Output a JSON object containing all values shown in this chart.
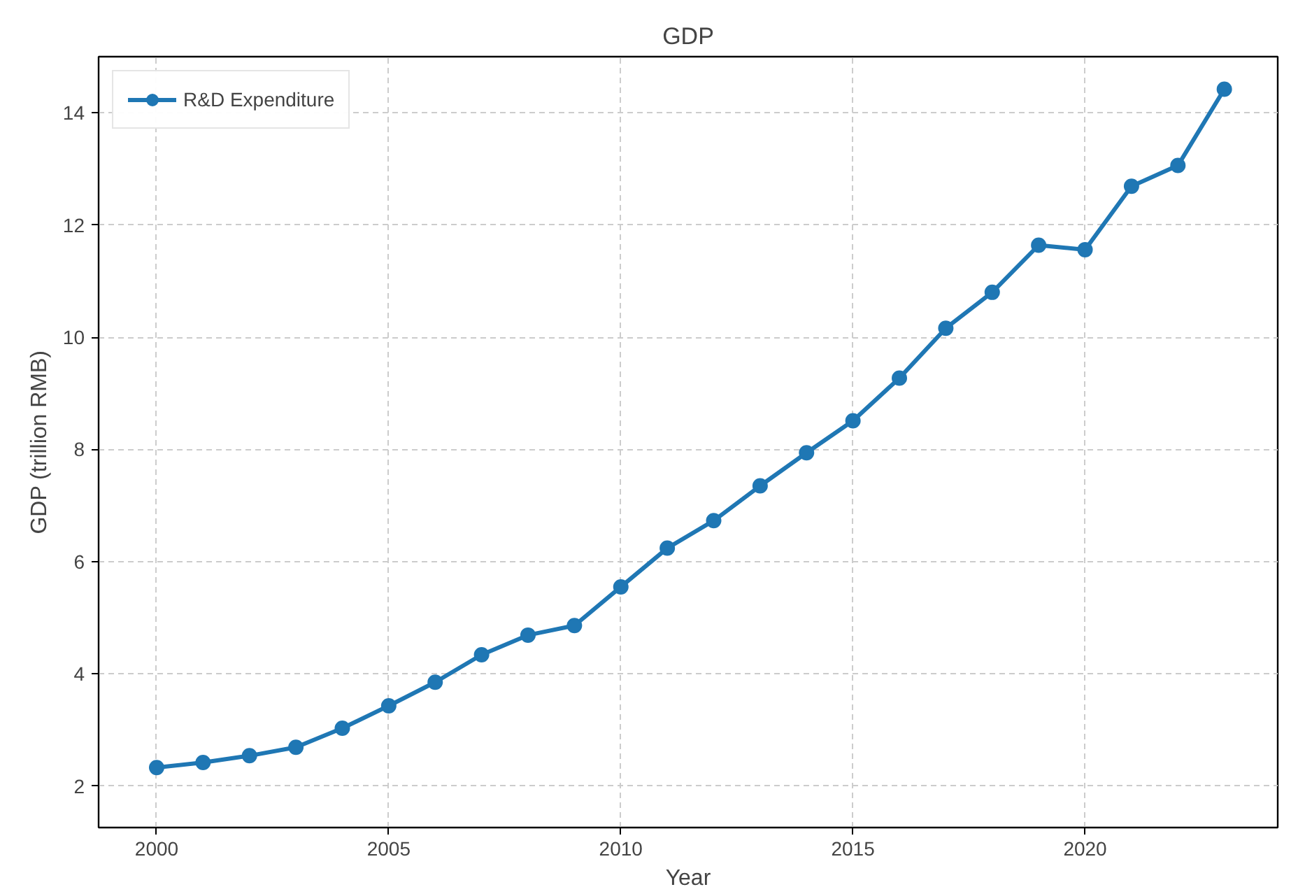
{
  "chart_data": {
    "type": "line",
    "title": "GDP",
    "xlabel": "Year",
    "ylabel": "GDP (trillion RMB)",
    "x": [
      2000,
      2001,
      2002,
      2003,
      2004,
      2005,
      2006,
      2007,
      2008,
      2009,
      2010,
      2011,
      2012,
      2013,
      2014,
      2015,
      2016,
      2017,
      2018,
      2019,
      2020,
      2021,
      2022,
      2023
    ],
    "series": [
      {
        "name": "R&D Expenditure",
        "color": "#1f77b4",
        "values": [
          2.33,
          2.42,
          2.54,
          2.69,
          3.03,
          3.43,
          3.85,
          4.34,
          4.69,
          4.86,
          5.55,
          6.24,
          6.73,
          7.35,
          7.94,
          8.51,
          9.27,
          10.16,
          10.8,
          11.64,
          11.56,
          12.69,
          13.06,
          14.42
        ]
      }
    ],
    "xlim": [
      1998.75,
      2024.15
    ],
    "ylim": [
      1.26,
      15.0
    ],
    "xticks": [
      2000,
      2005,
      2010,
      2015,
      2020
    ],
    "yticks": [
      2,
      4,
      6,
      8,
      10,
      12,
      14
    ],
    "grid": true,
    "legend": "top left",
    "marker": "circle",
    "line_style": "solid"
  }
}
